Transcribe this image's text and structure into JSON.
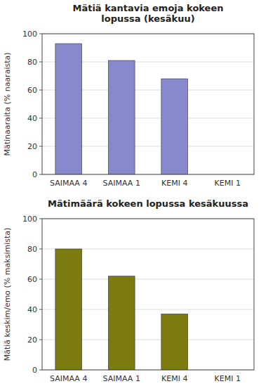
{
  "chart_data": [
    {
      "type": "bar",
      "title": "Mätiä kantavia emoja kokeen\nlopussa (kesäkuu)",
      "y_label": "Mätinaaraita (% naaraista)",
      "categories": [
        "SAIMAA 4",
        "SAIMAA 1",
        "KEMI 4",
        "KEMI 1"
      ],
      "values": [
        93,
        81,
        68,
        0
      ],
      "color": "#8888cc",
      "ylim": [
        0,
        100
      ],
      "yticks": [
        0,
        20,
        40,
        60,
        80,
        100
      ],
      "grid": true
    },
    {
      "type": "bar",
      "title": "Mätimäärä kokeen lopussa kesäkuussa",
      "y_label": "Mätiä keskim/emo (% maksimista)",
      "categories": [
        "SAIMAA 4",
        "SAIMAA 1",
        "KEMI 4",
        "KEMI 1"
      ],
      "values": [
        80,
        62,
        37,
        0
      ],
      "color": "#7b7b10",
      "ylim": [
        0,
        100
      ],
      "yticks": [
        0,
        20,
        40,
        60,
        80,
        100
      ],
      "grid": true
    }
  ]
}
